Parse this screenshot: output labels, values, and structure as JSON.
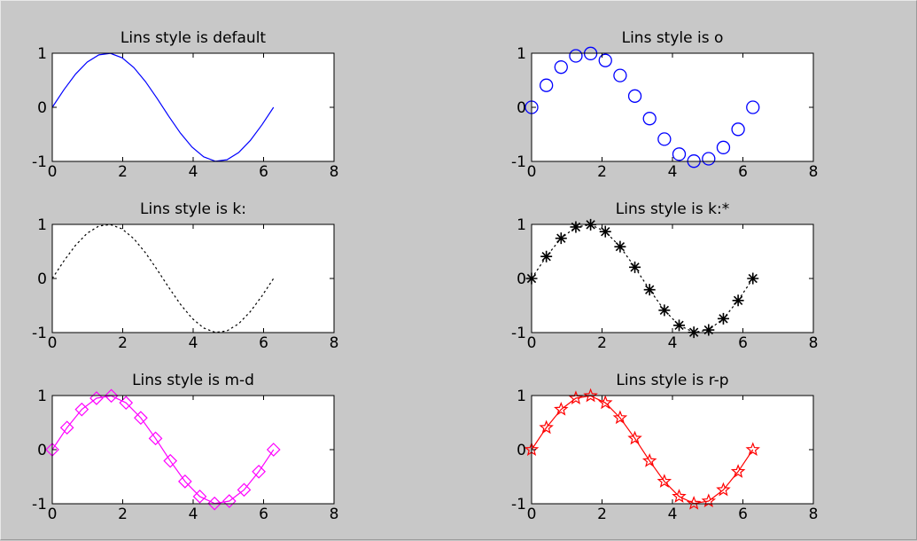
{
  "chart_data": [
    {
      "type": "line",
      "title": "Lins style is default",
      "line_style": "-",
      "marker": "none",
      "color": "#0000ff",
      "x": [
        0,
        0.3307,
        0.6614,
        0.9921,
        1.3228,
        1.6535,
        1.9842,
        2.3149,
        2.6456,
        2.9762,
        3.3069,
        3.6376,
        3.9683,
        4.299,
        4.6297,
        4.9604,
        5.2911,
        5.6218,
        5.9525,
        6.2832
      ],
      "y": [
        0,
        0.3247,
        0.6142,
        0.8372,
        0.9694,
        0.9966,
        0.9158,
        0.7357,
        0.4759,
        0.1646,
        -0.1646,
        -0.4759,
        -0.7357,
        -0.9158,
        -0.9966,
        -0.9694,
        -0.8372,
        -0.6142,
        -0.3247,
        0
      ],
      "xlim": [
        0,
        8
      ],
      "ylim": [
        -1,
        1
      ],
      "xticks": [
        "0",
        "2",
        "4",
        "6",
        "8"
      ],
      "yticks": [
        "1",
        "0",
        "-1"
      ]
    },
    {
      "type": "scatter",
      "title": "Lins style is o",
      "line_style": "none",
      "marker": "o",
      "color": "#0000ff",
      "x": [
        0,
        0.4189,
        0.8378,
        1.2566,
        1.6755,
        2.0944,
        2.5133,
        2.9322,
        3.351,
        3.7699,
        4.1888,
        4.6077,
        5.0265,
        5.4454,
        5.8643,
        6.2832
      ],
      "y": [
        0,
        0.4067,
        0.7431,
        0.9511,
        0.9945,
        0.866,
        0.5878,
        0.2079,
        -0.2079,
        -0.5878,
        -0.866,
        -0.9945,
        -0.9511,
        -0.7431,
        -0.4067,
        0
      ],
      "xlim": [
        0,
        8
      ],
      "ylim": [
        -1,
        1
      ],
      "xticks": [
        "0",
        "2",
        "4",
        "6",
        "8"
      ],
      "yticks": [
        "1",
        "0",
        "-1"
      ]
    },
    {
      "type": "line",
      "title": "Lins style is k:",
      "line_style": ":",
      "marker": "none",
      "color": "#000000",
      "x": [
        0,
        0.3307,
        0.6614,
        0.9921,
        1.3228,
        1.6535,
        1.9842,
        2.3149,
        2.6456,
        2.9762,
        3.3069,
        3.6376,
        3.9683,
        4.299,
        4.6297,
        4.9604,
        5.2911,
        5.6218,
        5.9525,
        6.2832
      ],
      "y": [
        0,
        0.3247,
        0.6142,
        0.8372,
        0.9694,
        0.9966,
        0.9158,
        0.7357,
        0.4759,
        0.1646,
        -0.1646,
        -0.4759,
        -0.7357,
        -0.9158,
        -0.9966,
        -0.9694,
        -0.8372,
        -0.6142,
        -0.3247,
        0
      ],
      "xlim": [
        0,
        8
      ],
      "ylim": [
        -1,
        1
      ],
      "xticks": [
        "0",
        "2",
        "4",
        "6",
        "8"
      ],
      "yticks": [
        "1",
        "0",
        "-1"
      ]
    },
    {
      "type": "line",
      "title": "Lins style is k:*",
      "line_style": ":",
      "marker": "*",
      "color": "#000000",
      "x": [
        0,
        0.4189,
        0.8378,
        1.2566,
        1.6755,
        2.0944,
        2.5133,
        2.9322,
        3.351,
        3.7699,
        4.1888,
        4.6077,
        5.0265,
        5.4454,
        5.8643,
        6.2832
      ],
      "y": [
        0,
        0.4067,
        0.7431,
        0.9511,
        0.9945,
        0.866,
        0.5878,
        0.2079,
        -0.2079,
        -0.5878,
        -0.866,
        -0.9945,
        -0.9511,
        -0.7431,
        -0.4067,
        0
      ],
      "xlim": [
        0,
        8
      ],
      "ylim": [
        -1,
        1
      ],
      "xticks": [
        "0",
        "2",
        "4",
        "6",
        "8"
      ],
      "yticks": [
        "1",
        "0",
        "-1"
      ]
    },
    {
      "type": "line",
      "title": "Lins style is m-d",
      "line_style": "-",
      "marker": "d",
      "color": "#ff00ff",
      "x": [
        0,
        0.4189,
        0.8378,
        1.2566,
        1.6755,
        2.0944,
        2.5133,
        2.9322,
        3.351,
        3.7699,
        4.1888,
        4.6077,
        5.0265,
        5.4454,
        5.8643,
        6.2832
      ],
      "y": [
        0,
        0.4067,
        0.7431,
        0.9511,
        0.9945,
        0.866,
        0.5878,
        0.2079,
        -0.2079,
        -0.5878,
        -0.866,
        -0.9945,
        -0.9511,
        -0.7431,
        -0.4067,
        0
      ],
      "xlim": [
        0,
        8
      ],
      "ylim": [
        -1,
        1
      ],
      "xticks": [
        "0",
        "2",
        "4",
        "6",
        "8"
      ],
      "yticks": [
        "1",
        "0",
        "-1"
      ]
    },
    {
      "type": "line",
      "title": "Lins style is r-p",
      "line_style": "-",
      "marker": "p",
      "color": "#ff0000",
      "x": [
        0,
        0.4189,
        0.8378,
        1.2566,
        1.6755,
        2.0944,
        2.5133,
        2.9322,
        3.351,
        3.7699,
        4.1888,
        4.6077,
        5.0265,
        5.4454,
        5.8643,
        6.2832
      ],
      "y": [
        0,
        0.4067,
        0.7431,
        0.9511,
        0.9945,
        0.866,
        0.5878,
        0.2079,
        -0.2079,
        -0.5878,
        -0.866,
        -0.9945,
        -0.9511,
        -0.7431,
        -0.4067,
        0
      ],
      "xlim": [
        0,
        8
      ],
      "ylim": [
        -1,
        1
      ],
      "xticks": [
        "0",
        "2",
        "4",
        "6",
        "8"
      ],
      "yticks": [
        "1",
        "0",
        "-1"
      ]
    }
  ]
}
